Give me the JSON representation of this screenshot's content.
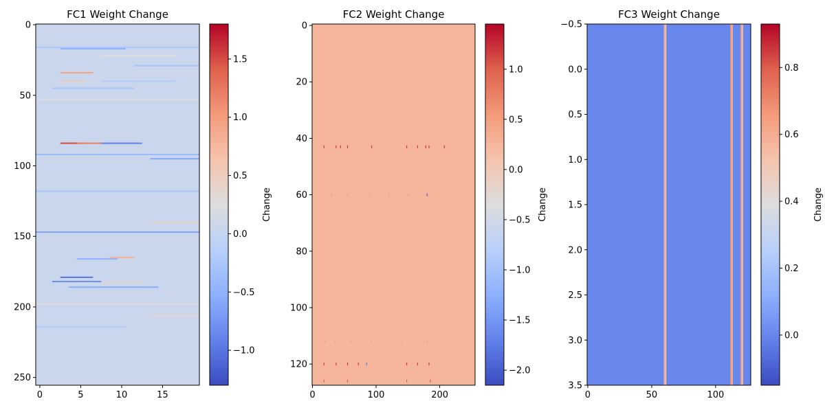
{
  "chart_data": [
    {
      "type": "heatmap",
      "title": "FC1 Weight Change",
      "colormap": "coolwarm",
      "xlim": [
        -0.5,
        19.5
      ],
      "ylim": [
        255.5,
        -0.5
      ],
      "xticks": [
        0,
        5,
        10,
        15
      ],
      "yticks": [
        0,
        50,
        100,
        150,
        200,
        250
      ],
      "background_value": 0.05,
      "colorbar": {
        "label": "Change",
        "range": [
          -1.3,
          1.8
        ],
        "ticks": [
          -1.0,
          -0.5,
          0.0,
          0.5,
          1.0,
          1.5
        ],
        "tick_labels": [
          "−1.0",
          "−0.5",
          "0.0",
          "0.5",
          "1.0",
          "1.5"
        ]
      },
      "features": [
        {
          "row": 16,
          "col_range": [
            0,
            19
          ],
          "value": -0.25
        },
        {
          "row": 17,
          "col_range": [
            3,
            10
          ],
          "value": -0.5
        },
        {
          "row": 22,
          "col_range": [
            8,
            16
          ],
          "value": 0.25
        },
        {
          "row": 29,
          "col_range": [
            12,
            19
          ],
          "value": -0.3
        },
        {
          "row": 34,
          "col_range": [
            3,
            6
          ],
          "value": 0.95
        },
        {
          "row": 40,
          "col_range": [
            3,
            5
          ],
          "value": 0.55
        },
        {
          "row": 40,
          "col_range": [
            8,
            16
          ],
          "value": -0.2
        },
        {
          "row": 45,
          "col_range": [
            2,
            11
          ],
          "value": -0.3
        },
        {
          "row": 53,
          "col_range": [
            0,
            19
          ],
          "value": 0.2
        },
        {
          "row": 84,
          "col_range": [
            3,
            5
          ],
          "value": 1.5
        },
        {
          "row": 84,
          "col_range": [
            5,
            7
          ],
          "value": 1.2
        },
        {
          "row": 84,
          "col_range": [
            8,
            12
          ],
          "value": -0.9
        },
        {
          "row": 92,
          "col_range": [
            0,
            19
          ],
          "value": -0.4
        },
        {
          "row": 95,
          "col_range": [
            14,
            19
          ],
          "value": -0.6
        },
        {
          "row": 118,
          "col_range": [
            0,
            19
          ],
          "value": -0.3
        },
        {
          "row": 140,
          "col_range": [
            14,
            19
          ],
          "value": 0.45
        },
        {
          "row": 147,
          "col_range": [
            0,
            19
          ],
          "value": -0.6
        },
        {
          "row": 165,
          "col_range": [
            9,
            11
          ],
          "value": 0.8
        },
        {
          "row": 166,
          "col_range": [
            5,
            9
          ],
          "value": -0.5
        },
        {
          "row": 179,
          "col_range": [
            3,
            6
          ],
          "value": -1.0
        },
        {
          "row": 182,
          "col_range": [
            2,
            7
          ],
          "value": -0.8
        },
        {
          "row": 183,
          "col_range": [
            8,
            12
          ],
          "value": 0.4
        },
        {
          "row": 186,
          "col_range": [
            4,
            14
          ],
          "value": -0.55
        },
        {
          "row": 198,
          "col_range": [
            0,
            19
          ],
          "value": 0.25
        },
        {
          "row": 206,
          "col_range": [
            14,
            19
          ],
          "value": 0.35
        },
        {
          "row": 214,
          "col_range": [
            0,
            10
          ],
          "value": -0.2
        }
      ]
    },
    {
      "type": "heatmap",
      "title": "FC2 Weight Change",
      "colormap": "coolwarm",
      "xlim": [
        -0.5,
        255.5
      ],
      "ylim": [
        127.5,
        -0.5
      ],
      "xticks": [
        0,
        100,
        200
      ],
      "yticks": [
        0,
        20,
        40,
        60,
        80,
        100,
        120
      ],
      "background_value": 0.25,
      "colorbar": {
        "label": "Change",
        "range": [
          -2.15,
          1.45
        ],
        "ticks": [
          -2.0,
          -1.5,
          -1.0,
          -0.5,
          0.0,
          0.5,
          1.0
        ],
        "tick_labels": [
          "−2.0",
          "−1.5",
          "−1.0",
          "−0.5",
          "0.0",
          "0.5",
          "1.0"
        ]
      },
      "features": [
        {
          "row": 43,
          "cols": [
            18,
            37,
            44,
            55,
            93,
            148,
            165,
            178,
            183,
            207
          ],
          "value": 1.2
        },
        {
          "row": 60,
          "cols": [
            30,
            55,
            90,
            120,
            150
          ],
          "value": 0.5
        },
        {
          "row": 60,
          "cols": [
            180
          ],
          "value": -2.0
        },
        {
          "row": 112,
          "cols": [
            20,
            35,
            60,
            93,
            140,
            180
          ],
          "value": 0.5
        },
        {
          "row": 120,
          "cols": [
            18,
            37,
            55,
            72,
            148,
            165,
            183
          ],
          "value": 1.2
        },
        {
          "row": 120,
          "cols": [
            85
          ],
          "value": -1.8
        },
        {
          "row": 126,
          "cols": [
            18,
            55,
            148,
            185
          ],
          "value": 1.0
        }
      ]
    },
    {
      "type": "heatmap",
      "title": "FC3 Weight Change",
      "colormap": "coolwarm",
      "xlim": [
        -0.5,
        127.5
      ],
      "ylim": [
        3.5,
        -0.5
      ],
      "xticks": [
        0,
        50,
        100
      ],
      "yticks": [
        -0.5,
        0.0,
        0.5,
        1.0,
        1.5,
        2.0,
        2.5,
        3.0,
        3.5
      ],
      "background_value": 0.0,
      "colorbar": {
        "label": "Change",
        "range": [
          -0.15,
          0.93
        ],
        "ticks": [
          0.0,
          0.2,
          0.4,
          0.6,
          0.8
        ],
        "tick_labels": [
          "0.0",
          "0.2",
          "0.4",
          "0.6",
          "0.8"
        ]
      },
      "features": [
        {
          "col": 60,
          "value": 0.6
        },
        {
          "col": 61,
          "value": 0.55
        },
        {
          "col": 112,
          "value": 0.65
        },
        {
          "col": 113,
          "value": 0.6
        },
        {
          "col": 120,
          "value": 0.65
        },
        {
          "col": 121,
          "value": 0.55
        }
      ]
    }
  ]
}
